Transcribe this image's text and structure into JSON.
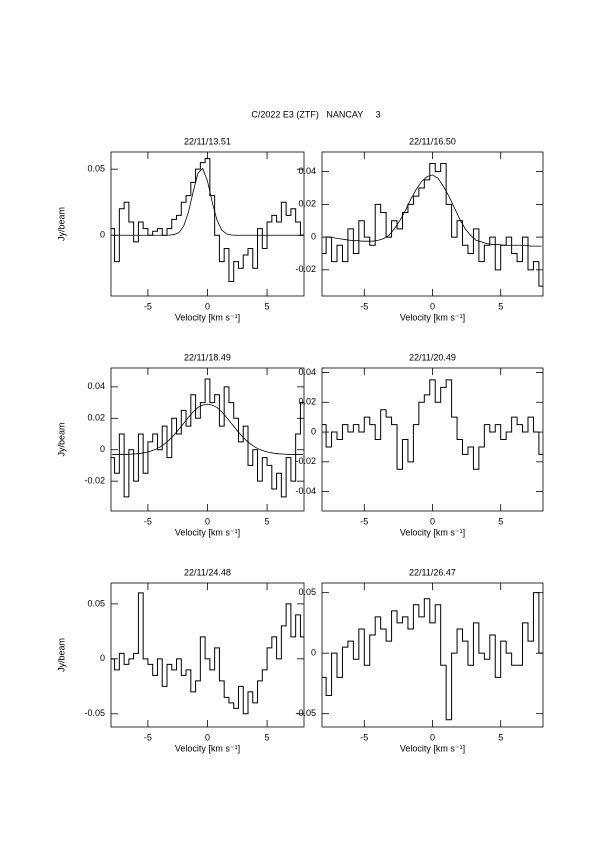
{
  "page_title": "C/2022 E3 (ZTF)   NANCAY     3",
  "chart_data": [
    {
      "type": "line",
      "title": "22/11/13.51",
      "xlabel": "Velocity [km s⁻¹]",
      "ylabel": "Jy/beam",
      "x": [
        -8,
        -7.6,
        -7.2,
        -6.8,
        -6.4,
        -6,
        -5.6,
        -5.2,
        -4.8,
        -4.4,
        -4,
        -3.6,
        -3.2,
        -2.8,
        -2.4,
        -2,
        -1.6,
        -1.2,
        -0.8,
        -0.4,
        0,
        0.4,
        0.8,
        1.2,
        1.6,
        2,
        2.4,
        2.8,
        3.2,
        3.6,
        4,
        4.4,
        4.8,
        5.2,
        5.6,
        6,
        6.4,
        6.8,
        7.2,
        7.6,
        8
      ],
      "series": [
        {
          "color": "#000000",
          "step": true,
          "values": [
            0.005,
            -0.02,
            0.02,
            0.025,
            0.01,
            -0.005,
            0.01,
            0.005,
            0,
            0.003,
            0.005,
            0,
            0.005,
            0.012,
            0.015,
            0.025,
            0.03,
            0.04,
            0.05,
            0.055,
            0.058,
            0.03,
            0,
            -0.02,
            -0.01,
            -0.035,
            -0.02,
            -0.025,
            -0.015,
            -0.01,
            -0.025,
            0.005,
            -0.01,
            0.01,
            0.015,
            0.01,
            0.025,
            0.015,
            0.02,
            0.01,
            0
          ]
        },
        {
          "color": "#000000",
          "step": false,
          "values": [
            0,
            0,
            0,
            0,
            0,
            0,
            0,
            0,
            0,
            0,
            0,
            0,
            0.0001,
            0.0005,
            0.002,
            0.0069,
            0.0174,
            0.033,
            0.047,
            0.0505,
            0.041,
            0.0248,
            0.0114,
            0.0039,
            0.001,
            0.0002,
            0,
            0,
            0,
            0,
            0,
            0,
            0,
            0,
            0,
            0,
            0,
            0,
            0,
            0,
            0
          ]
        }
      ],
      "xlim": [
        -8.1,
        8.1
      ],
      "xticks": [
        -5,
        0,
        5
      ],
      "ylim": [
        -0.046,
        0.063
      ],
      "yticks": [
        0,
        0.05
      ]
    },
    {
      "type": "line",
      "title": "22/11/16.50",
      "xlabel": "Velocity [km s⁻¹]",
      "x": [
        -8,
        -7.6,
        -7.2,
        -6.8,
        -6.4,
        -6,
        -5.6,
        -5.2,
        -4.8,
        -4.4,
        -4,
        -3.6,
        -3.2,
        -2.8,
        -2.4,
        -2,
        -1.6,
        -1.2,
        -0.8,
        -0.4,
        0,
        0.4,
        0.8,
        1.2,
        1.6,
        2,
        2.4,
        2.8,
        3.2,
        3.6,
        4,
        4.4,
        4.8,
        5.2,
        5.6,
        6,
        6.4,
        6.8,
        7.2,
        7.6,
        8
      ],
      "series": [
        {
          "color": "#000000",
          "step": true,
          "values": [
            -0.01,
            0,
            -0.015,
            -0.005,
            -0.015,
            0.005,
            -0.01,
            0.01,
            0,
            -0.005,
            0.02,
            0.015,
            0,
            0.01,
            0.005,
            0.015,
            0.02,
            0.025,
            0.03,
            0.035,
            0.045,
            0.04,
            0.045,
            0.02,
            0,
            0.01,
            -0.005,
            -0.01,
            0.005,
            -0.015,
            -0.005,
            0,
            -0.02,
            -0.005,
            0,
            -0.01,
            -0.015,
            0,
            -0.02,
            -0.015,
            -0.03
          ]
        },
        {
          "color": "#000000",
          "step": false,
          "values": [
            0,
            0,
            -0.0005,
            -0.001,
            -0.0015,
            -0.002,
            -0.002,
            -0.0025,
            -0.0025,
            -0.0025,
            -0.002,
            -0.001,
            0.001,
            0.005,
            0.01,
            0.016,
            0.023,
            0.029,
            0.034,
            0.037,
            0.038,
            0.036,
            0.031,
            0.025,
            0.018,
            0.011,
            0.005,
            0.001,
            -0.002,
            -0.003,
            -0.004,
            -0.0045,
            -0.0045,
            -0.005,
            -0.005,
            -0.005,
            -0.005,
            -0.005,
            -0.0055,
            -0.0055,
            -0.0055
          ]
        }
      ],
      "xlim": [
        -8.1,
        8.1
      ],
      "xticks": [
        -5,
        0,
        5
      ],
      "ylim": [
        -0.036,
        0.052
      ],
      "yticks": [
        -0.02,
        0,
        0.02,
        0.04
      ]
    },
    {
      "type": "line",
      "title": "22/11/18.49",
      "xlabel": "Velocity [km s⁻¹]",
      "ylabel": "Jy/beam",
      "x": [
        -8,
        -7.6,
        -7.2,
        -6.8,
        -6.4,
        -6,
        -5.6,
        -5.2,
        -4.8,
        -4.4,
        -4,
        -3.6,
        -3.2,
        -2.8,
        -2.4,
        -2,
        -1.6,
        -1.2,
        -0.8,
        -0.4,
        0,
        0.4,
        0.8,
        1.2,
        1.6,
        2,
        2.4,
        2.8,
        3.2,
        3.6,
        4,
        4.4,
        4.8,
        5.2,
        5.6,
        6,
        6.4,
        6.8,
        7.2,
        7.6,
        8
      ],
      "series": [
        {
          "color": "#000000",
          "step": true,
          "values": [
            -0.005,
            -0.015,
            0.01,
            -0.03,
            0,
            -0.02,
            0.01,
            -0.015,
            0.005,
            0.01,
            0,
            0.015,
            -0.005,
            0.02,
            0.01,
            0.025,
            0.015,
            0.035,
            0.02,
            0.03,
            0.045,
            0.03,
            0.035,
            0.015,
            0.04,
            0.03,
            0.02,
            0.005,
            0.015,
            -0.01,
            0,
            -0.02,
            -0.005,
            -0.01,
            -0.025,
            -0.015,
            -0.03,
            -0.005,
            -0.02,
            0.01,
            0.03
          ]
        },
        {
          "color": "#000000",
          "step": false,
          "values": [
            -0.003,
            -0.003,
            -0.003,
            -0.003,
            -0.0028,
            -0.0026,
            -0.0023,
            -0.0018,
            -0.001,
            0.0001,
            0.0016,
            0.0037,
            0.0063,
            0.0094,
            0.013,
            0.0168,
            0.0206,
            0.0241,
            0.0269,
            0.0284,
            0.029,
            0.0284,
            0.0269,
            0.0241,
            0.0206,
            0.0168,
            0.013,
            0.0094,
            0.0063,
            0.0037,
            0.0016,
            0.0001,
            -0.001,
            -0.0018,
            -0.0023,
            -0.0026,
            -0.0028,
            -0.003,
            -0.003,
            -0.003,
            -0.003
          ]
        }
      ],
      "xlim": [
        -8.1,
        8.1
      ],
      "xticks": [
        -5,
        0,
        5
      ],
      "ylim": [
        -0.039,
        0.052
      ],
      "yticks": [
        -0.02,
        0,
        0.02,
        0.04
      ]
    },
    {
      "type": "line",
      "title": "22/11/20.49",
      "xlabel": "Velocity [km s⁻¹]",
      "x": [
        -8,
        -7.6,
        -7.2,
        -6.8,
        -6.4,
        -6,
        -5.6,
        -5.2,
        -4.8,
        -4.4,
        -4,
        -3.6,
        -3.2,
        -2.8,
        -2.4,
        -2,
        -1.6,
        -1.2,
        -0.8,
        -0.4,
        0,
        0.4,
        0.8,
        1.2,
        1.6,
        2,
        2.4,
        2.8,
        3.2,
        3.6,
        4,
        4.4,
        4.8,
        5.2,
        5.6,
        6,
        6.4,
        6.8,
        7.2,
        7.6,
        8
      ],
      "series": [
        {
          "color": "#000000",
          "step": true,
          "values": [
            0.005,
            -0.01,
            0,
            -0.005,
            0.005,
            0,
            0.005,
            0,
            0.01,
            0.005,
            -0.005,
            0.015,
            0.01,
            0.005,
            -0.025,
            -0.005,
            -0.02,
            0.005,
            0.02,
            0.025,
            0.035,
            0.02,
            0.03,
            0.035,
            0.01,
            -0.005,
            -0.015,
            -0.01,
            -0.025,
            -0.01,
            0.005,
            0,
            0.005,
            -0.005,
            0,
            0.01,
            0.005,
            0,
            0.01,
            0,
            -0.015
          ]
        }
      ],
      "xlim": [
        -8.1,
        8.1
      ],
      "xticks": [
        -5,
        0,
        5
      ],
      "ylim": [
        -0.053,
        0.043
      ],
      "yticks": [
        -0.04,
        -0.02,
        0,
        0.02,
        0.04
      ]
    },
    {
      "type": "line",
      "title": "22/11/24.48",
      "xlabel": "Velocity [km s⁻¹]",
      "ylabel": "Jy/beam",
      "x": [
        -8,
        -7.6,
        -7.2,
        -6.8,
        -6.4,
        -6,
        -5.6,
        -5.2,
        -4.8,
        -4.4,
        -4,
        -3.6,
        -3.2,
        -2.8,
        -2.4,
        -2,
        -1.6,
        -1.2,
        -0.8,
        -0.4,
        0,
        0.4,
        0.8,
        1.2,
        1.6,
        2,
        2.4,
        2.8,
        3.2,
        3.6,
        4,
        4.4,
        4.8,
        5.2,
        5.6,
        6,
        6.4,
        6.8,
        7.2,
        7.6,
        8
      ],
      "series": [
        {
          "color": "#000000",
          "step": true,
          "values": [
            0,
            -0.01,
            0.005,
            -0.005,
            0,
            0.005,
            0.06,
            0,
            -0.005,
            -0.015,
            0,
            -0.025,
            -0.005,
            -0.01,
            0,
            -0.015,
            -0.01,
            -0.03,
            -0.02,
            0.02,
            0,
            -0.01,
            0.01,
            -0.02,
            -0.035,
            -0.04,
            -0.045,
            -0.025,
            -0.05,
            -0.03,
            -0.04,
            -0.02,
            -0.01,
            0.01,
            0.02,
            0,
            0.03,
            0.05,
            0.02,
            0.04,
            0.02
          ]
        }
      ],
      "xlim": [
        -8.1,
        8.1
      ],
      "xticks": [
        -5,
        0,
        5
      ],
      "ylim": [
        -0.062,
        0.069
      ],
      "yticks": [
        -0.05,
        0,
        0.05
      ]
    },
    {
      "type": "line",
      "title": "22/11/26.47",
      "xlabel": "Velocity [km s⁻¹]",
      "x": [
        -8,
        -7.6,
        -7.2,
        -6.8,
        -6.4,
        -6,
        -5.6,
        -5.2,
        -4.8,
        -4.4,
        -4,
        -3.6,
        -3.2,
        -2.8,
        -2.4,
        -2,
        -1.6,
        -1.2,
        -0.8,
        -0.4,
        0,
        0.4,
        0.8,
        1.2,
        1.6,
        2,
        2.4,
        2.8,
        3.2,
        3.6,
        4,
        4.4,
        4.8,
        5.2,
        5.6,
        6,
        6.4,
        6.8,
        7.2,
        7.6,
        8
      ],
      "series": [
        {
          "color": "#000000",
          "step": true,
          "values": [
            -0.02,
            -0.035,
            0,
            -0.02,
            0.005,
            0.01,
            -0.005,
            0.02,
            -0.01,
            0.015,
            0.03,
            0.02,
            0.01,
            0.035,
            0.025,
            0.03,
            0.02,
            0.04,
            0.03,
            0.045,
            0.025,
            0.04,
            -0.01,
            -0.055,
            0,
            0.02,
            0.01,
            -0.01,
            0.025,
            0,
            -0.005,
            0.015,
            -0.02,
            0.01,
            0,
            -0.01,
            -0.01,
            0.025,
            0.01,
            0.05,
            0
          ]
        }
      ],
      "xlim": [
        -8.1,
        8.1
      ],
      "xticks": [
        -5,
        0,
        5
      ],
      "ylim": [
        -0.061,
        0.058
      ],
      "yticks": [
        -0.05,
        0,
        0.05
      ]
    }
  ]
}
